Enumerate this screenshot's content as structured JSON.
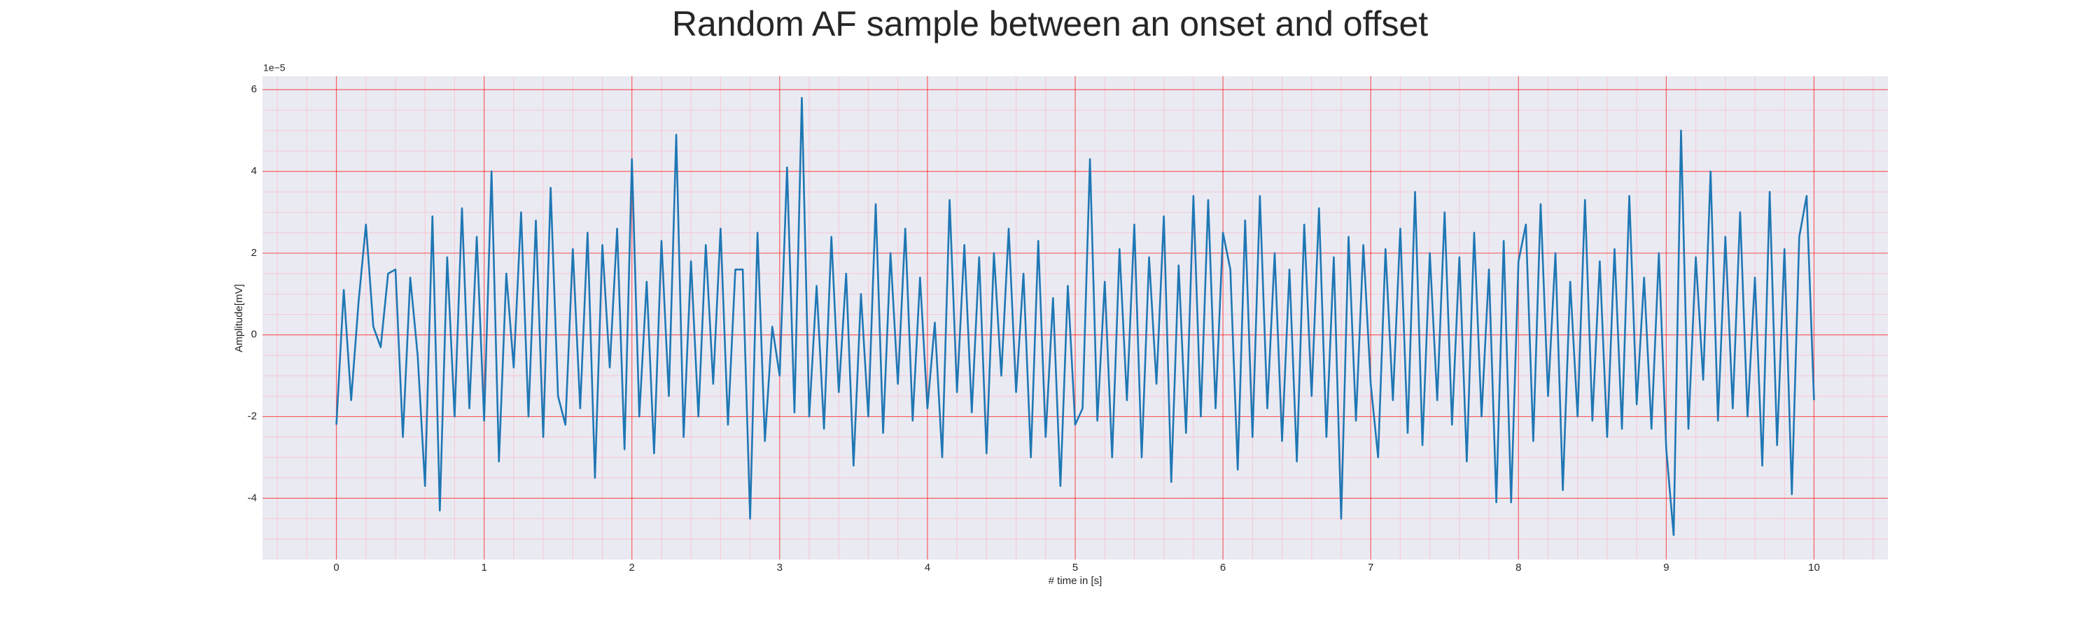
{
  "chart_data": {
    "type": "line",
    "title": "Random AF sample between an onset and offset",
    "xlabel": "# time in [s]",
    "ylabel": "Amplitude[mV]",
    "offset_text": "1e−5",
    "xlim": [
      -0.5,
      10.5
    ],
    "ylim": [
      -5.5,
      6.33
    ],
    "xticks": [
      0,
      1,
      2,
      3,
      4,
      5,
      6,
      7,
      8,
      9,
      10
    ],
    "yticks": [
      -4,
      -2,
      0,
      2,
      4,
      6
    ],
    "xminorticks": [
      -0.4,
      -0.2,
      0.2,
      0.4,
      0.6,
      0.8,
      1.2,
      1.4,
      1.6,
      1.8,
      2.2,
      2.4,
      2.6,
      2.8,
      3.2,
      3.4,
      3.6,
      3.8,
      4.2,
      4.4,
      4.6,
      4.8,
      5.2,
      5.4,
      5.6,
      5.8,
      6.2,
      6.4,
      6.6,
      6.8,
      7.2,
      7.4,
      7.6,
      7.8,
      8.2,
      8.4,
      8.6,
      8.8,
      9.2,
      9.4,
      9.6,
      9.8,
      10.2,
      10.4
    ],
    "yminorticks": [
      -5,
      -4.5,
      -3.5,
      -3,
      -2.5,
      -1.5,
      -1,
      -0.5,
      0.5,
      1,
      1.5,
      2.5,
      3,
      3.5,
      4.5,
      5,
      5.5
    ],
    "grid": true,
    "minor_grid": true,
    "grid_color": "#ff0000",
    "minor_grid_color": "#ffb0c0",
    "background": "#eaeaf2",
    "x": [
      0,
      0.05,
      0.1,
      0.15,
      0.2,
      0.25,
      0.3,
      0.35,
      0.4,
      0.45,
      0.5,
      0.55,
      0.6,
      0.65,
      0.7,
      0.75,
      0.8,
      0.85,
      0.9,
      0.95,
      1,
      1.05,
      1.1,
      1.15,
      1.2,
      1.25,
      1.3,
      1.35,
      1.4,
      1.45,
      1.5,
      1.55,
      1.6,
      1.65,
      1.7,
      1.75,
      1.8,
      1.85,
      1.9,
      1.95,
      2,
      2.05,
      2.1,
      2.15,
      2.2,
      2.25,
      2.3,
      2.35,
      2.4,
      2.45,
      2.5,
      2.55,
      2.6,
      2.65,
      2.7,
      2.75,
      2.8,
      2.85,
      2.9,
      2.95,
      3,
      3.05,
      3.1,
      3.15,
      3.2,
      3.25,
      3.3,
      3.35,
      3.4,
      3.45,
      3.5,
      3.55,
      3.6,
      3.65,
      3.7,
      3.75,
      3.8,
      3.85,
      3.9,
      3.95,
      4,
      4.05,
      4.1,
      4.15,
      4.2,
      4.25,
      4.3,
      4.35,
      4.4,
      4.45,
      4.5,
      4.55,
      4.6,
      4.65,
      4.7,
      4.75,
      4.8,
      4.85,
      4.9,
      4.95,
      5,
      5.05,
      5.1,
      5.15,
      5.2,
      5.25,
      5.3,
      5.35,
      5.4,
      5.45,
      5.5,
      5.55,
      5.6,
      5.65,
      5.7,
      5.75,
      5.8,
      5.85,
      5.9,
      5.95,
      6,
      6.05,
      6.1,
      6.15,
      6.2,
      6.25,
      6.3,
      6.35,
      6.4,
      6.45,
      6.5,
      6.55,
      6.6,
      6.65,
      6.7,
      6.75,
      6.8,
      6.85,
      6.9,
      6.95,
      7,
      7.05,
      7.1,
      7.15,
      7.2,
      7.25,
      7.3,
      7.35,
      7.4,
      7.45,
      7.5,
      7.55,
      7.6,
      7.65,
      7.7,
      7.75,
      7.8,
      7.85,
      7.9,
      7.95,
      8,
      8.05,
      8.1,
      8.15,
      8.2,
      8.25,
      8.3,
      8.35,
      8.4,
      8.45,
      8.5,
      8.55,
      8.6,
      8.65,
      8.7,
      8.75,
      8.8,
      8.85,
      8.9,
      8.95,
      9,
      9.05,
      9.1,
      9.15,
      9.2,
      9.25,
      9.3,
      9.35,
      9.4,
      9.45,
      9.5,
      9.55,
      9.6,
      9.65,
      9.7,
      9.75,
      9.8,
      9.85,
      9.9,
      9.95,
      10
    ],
    "series": [
      {
        "color": "#1f77b4",
        "values": [
          -2.2,
          1.1,
          -1.6,
          0.8,
          2.7,
          0.2,
          -0.3,
          1.5,
          1.6,
          -2.5,
          1.4,
          -0.5,
          -3.7,
          2.9,
          -4.3,
          1.9,
          -2.0,
          3.1,
          -1.8,
          2.4,
          -2.1,
          4.0,
          -3.1,
          1.5,
          -0.8,
          3.0,
          -2.0,
          2.8,
          -2.5,
          3.6,
          -1.5,
          -2.2,
          2.1,
          -1.8,
          2.5,
          -3.5,
          2.2,
          -0.8,
          2.6,
          -2.8,
          4.3,
          -2.0,
          1.3,
          -2.9,
          2.3,
          -1.5,
          4.9,
          -2.5,
          1.8,
          -2.0,
          2.2,
          -1.2,
          2.6,
          -2.2,
          1.6,
          1.6,
          -4.5,
          2.5,
          -2.6,
          0.2,
          -1.0,
          4.1,
          -1.9,
          5.8,
          -2.0,
          1.2,
          -2.3,
          2.4,
          -1.4,
          1.5,
          -3.2,
          1.0,
          -2.0,
          3.2,
          -2.4,
          2.0,
          -1.2,
          2.6,
          -2.1,
          1.4,
          -1.8,
          0.3,
          -3.0,
          3.3,
          -1.4,
          2.2,
          -1.9,
          1.9,
          -2.9,
          2.0,
          -1.0,
          2.6,
          -1.4,
          1.5,
          -3.0,
          2.3,
          -2.5,
          0.9,
          -3.7,
          1.2,
          -2.2,
          -1.8,
          4.3,
          -2.1,
          1.3,
          -3.0,
          2.1,
          -1.6,
          2.7,
          -3.0,
          1.9,
          -1.2,
          2.9,
          -3.6,
          1.7,
          -2.4,
          3.4,
          -2.0,
          3.3,
          -1.8,
          2.5,
          1.6,
          -3.3,
          2.8,
          -2.5,
          3.4,
          -1.8,
          2.0,
          -2.6,
          1.6,
          -3.1,
          2.7,
          -1.5,
          3.1,
          -2.5,
          1.9,
          -4.5,
          2.4,
          -2.1,
          2.2,
          -1.2,
          -3.0,
          2.1,
          -1.6,
          2.6,
          -2.4,
          3.5,
          -2.7,
          2.0,
          -1.6,
          3.0,
          -2.2,
          1.9,
          -3.1,
          2.5,
          -2.0,
          1.6,
          -4.1,
          2.3,
          -4.1,
          1.8,
          2.7,
          -2.6,
          3.2,
          -1.5,
          2.0,
          -3.8,
          1.3,
          -2.0,
          3.3,
          -2.1,
          1.8,
          -2.5,
          2.1,
          -2.3,
          3.4,
          -1.7,
          1.4,
          -2.3,
          2.0,
          -2.8,
          -4.9,
          5.0,
          -2.3,
          1.9,
          -1.1,
          4.0,
          -2.1,
          2.4,
          -1.8,
          3.0,
          -2.0,
          1.4,
          -3.2,
          3.5,
          -2.7,
          2.1,
          -3.9,
          2.4,
          3.4,
          -1.6
        ]
      }
    ]
  }
}
